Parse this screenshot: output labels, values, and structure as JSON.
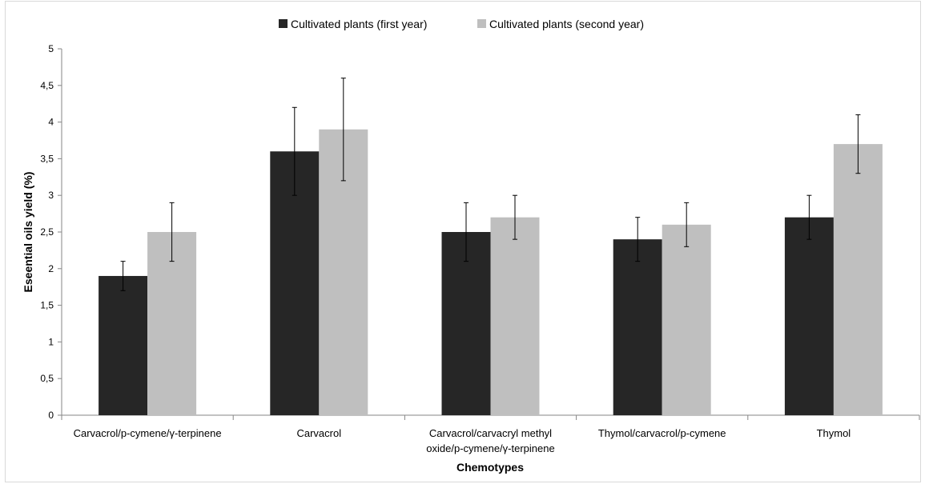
{
  "chart_data": {
    "type": "bar",
    "categories": [
      "Carvacrol/p-cymene/γ-terpinene",
      "Carvacrol",
      "Carvacrol/carvacryl methyl oxide/p-cymene/γ-terpinene",
      "Thymol/carvacrol/p-cymene",
      "Thymol"
    ],
    "category_lines": [
      [
        "Carvacrol/p-cymene/γ-terpinene"
      ],
      [
        "Carvacrol"
      ],
      [
        "Carvacrol/carvacryl methyl",
        "oxide/p-cymene/γ-terpinene"
      ],
      [
        "Thymol/carvacrol/p-cymene"
      ],
      [
        "Thymol"
      ]
    ],
    "series": [
      {
        "name": "Cultivated plants (first year)",
        "color": "#262626",
        "values": [
          1.9,
          3.6,
          2.5,
          2.4,
          2.7
        ],
        "error": [
          0.2,
          0.6,
          0.4,
          0.3,
          0.3
        ]
      },
      {
        "name": "Cultivated plants (second year)",
        "color": "#bfbfbf",
        "values": [
          2.5,
          3.9,
          2.7,
          2.6,
          3.7
        ],
        "error": [
          0.4,
          0.7,
          0.3,
          0.3,
          0.4
        ]
      }
    ],
    "xlabel": "Chemotypes",
    "ylabel": "Eseential oils yield (%)",
    "ylim": [
      0,
      5
    ],
    "yticks": [
      0,
      0.5,
      1,
      1.5,
      2,
      2.5,
      3,
      3.5,
      4,
      4.5,
      5
    ],
    "ytick_labels": [
      "0",
      "0,5",
      "1",
      "1,5",
      "2",
      "2,5",
      "3",
      "3,5",
      "4",
      "4,5",
      "5"
    ],
    "legend_position": "top",
    "grid": false
  }
}
